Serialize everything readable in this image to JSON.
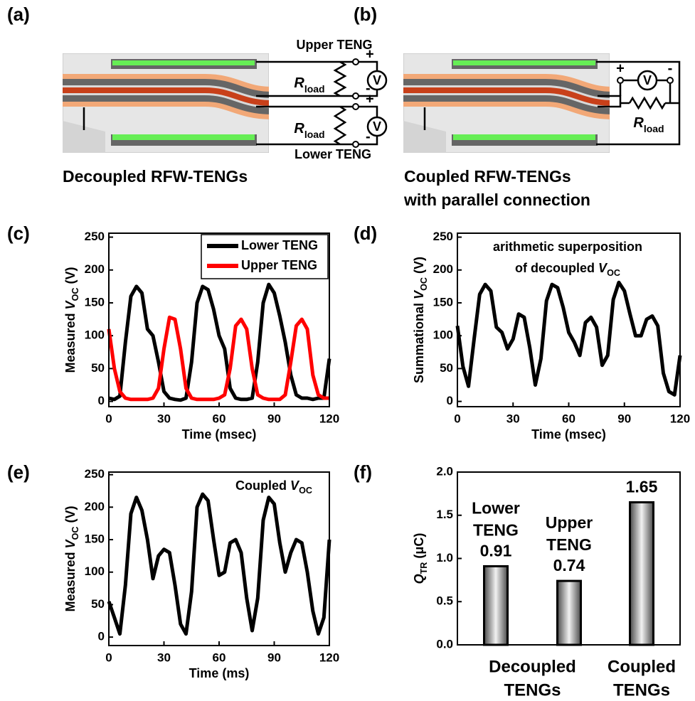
{
  "diagram_a": {
    "label": "(a)",
    "upper": "Upper TENG",
    "lower": "Lower TENG",
    "r_main": "R",
    "r_sub": "load",
    "meter": "V",
    "plus": "+",
    "minus": "-",
    "caption": [
      "Decoupled RFW-TENGs"
    ]
  },
  "diagram_b": {
    "label": "(b)",
    "r_main": "R",
    "r_sub": "load",
    "meter": "V",
    "plus": "+",
    "minus": "-",
    "caption": [
      "Coupled RFW-TENGs",
      "with parallel connection"
    ]
  },
  "chart_data": [
    {
      "type": "line",
      "panel": "(c)",
      "ylabel": [
        {
          "t": "Measured "
        },
        {
          "t": "V",
          "style": "italic"
        },
        {
          "t": "OC",
          "style": "sub"
        },
        {
          "t": " (V)"
        }
      ],
      "xlabel": "Time (msec)",
      "x": [
        0,
        3,
        6,
        9,
        12,
        15,
        18,
        21,
        24,
        27,
        30,
        33,
        36,
        39,
        42,
        45,
        48,
        51,
        54,
        57,
        60,
        63,
        66,
        69,
        72,
        75,
        78,
        81,
        84,
        87,
        90,
        93,
        96,
        99,
        102,
        105,
        108,
        111,
        114,
        117,
        120
      ],
      "series": [
        {
          "name": "Lower TENG",
          "color": "#000000",
          "values": [
            5,
            3,
            8,
            90,
            160,
            175,
            165,
            110,
            100,
            60,
            15,
            5,
            3,
            2,
            5,
            60,
            150,
            175,
            170,
            140,
            100,
            80,
            20,
            5,
            3,
            3,
            5,
            60,
            150,
            178,
            165,
            130,
            90,
            40,
            10,
            5,
            5,
            3,
            5,
            5,
            65
          ]
        },
        {
          "name": "Upper TENG",
          "color": "#ff0000",
          "values": [
            110,
            50,
            15,
            5,
            3,
            3,
            3,
            3,
            5,
            20,
            80,
            128,
            125,
            80,
            20,
            5,
            3,
            3,
            3,
            3,
            5,
            10,
            50,
            115,
            125,
            110,
            50,
            10,
            5,
            3,
            3,
            3,
            10,
            60,
            115,
            125,
            110,
            40,
            10,
            5,
            5
          ]
        }
      ],
      "xlim": [
        0,
        120
      ],
      "xticks": [
        0,
        30,
        60,
        90,
        120
      ],
      "ylim": [
        -8,
        256
      ],
      "yticks": [
        0,
        50,
        100,
        150,
        200,
        250
      ],
      "legend": "top-right"
    },
    {
      "type": "line",
      "panel": "(d)",
      "ylabel": [
        {
          "t": "Summational "
        },
        {
          "t": "V",
          "style": "italic"
        },
        {
          "t": "OC",
          "style": "sub"
        },
        {
          "t": " (V)"
        }
      ],
      "xlabel": "Time (msec)",
      "annotation": [
        [
          {
            "t": "arithmetic superposition"
          }
        ],
        [
          {
            "t": "of decoupled "
          },
          {
            "t": "V",
            "style": "italic"
          },
          {
            "t": "OC",
            "style": "sub"
          }
        ]
      ],
      "x": [
        0,
        3,
        6,
        9,
        12,
        15,
        18,
        21,
        24,
        27,
        30,
        33,
        36,
        39,
        42,
        45,
        48,
        51,
        54,
        57,
        60,
        63,
        66,
        69,
        72,
        75,
        78,
        81,
        84,
        87,
        90,
        93,
        96,
        99,
        102,
        105,
        108,
        111,
        114,
        117,
        120
      ],
      "series": [
        {
          "color": "#000000",
          "values": [
            115,
            53,
            23,
            95,
            163,
            178,
            168,
            113,
            105,
            80,
            95,
            133,
            128,
            82,
            25,
            65,
            153,
            178,
            173,
            143,
            105,
            90,
            70,
            120,
            128,
            113,
            55,
            70,
            155,
            181,
            168,
            133,
            100,
            100,
            125,
            130,
            115,
            43,
            15,
            10,
            70
          ]
        }
      ],
      "xlim": [
        0,
        120
      ],
      "xticks": [
        0,
        30,
        60,
        90,
        120
      ],
      "ylim": [
        -8,
        256
      ],
      "yticks": [
        0,
        50,
        100,
        150,
        200,
        250
      ]
    },
    {
      "type": "line",
      "panel": "(e)",
      "ylabel": [
        {
          "t": "Measured "
        },
        {
          "t": "V",
          "style": "italic"
        },
        {
          "t": "OC",
          "style": "sub"
        },
        {
          "t": " (V)"
        }
      ],
      "xlabel": "Time (ms)",
      "annotation": [
        [
          {
            "t": "Coupled "
          },
          {
            "t": "V",
            "style": "italic"
          },
          {
            "t": "OC",
            "style": "sub"
          }
        ]
      ],
      "x": [
        0,
        3,
        6,
        9,
        12,
        15,
        18,
        21,
        24,
        27,
        30,
        33,
        36,
        39,
        42,
        45,
        48,
        51,
        54,
        57,
        60,
        63,
        66,
        69,
        72,
        75,
        78,
        81,
        84,
        87,
        90,
        93,
        96,
        99,
        102,
        105,
        108,
        111,
        114,
        117,
        120
      ],
      "series": [
        {
          "color": "#000000",
          "values": [
            55,
            30,
            5,
            80,
            190,
            215,
            195,
            150,
            90,
            125,
            135,
            130,
            80,
            20,
            5,
            70,
            200,
            220,
            210,
            150,
            95,
            100,
            145,
            150,
            130,
            60,
            10,
            60,
            180,
            215,
            205,
            145,
            100,
            130,
            150,
            145,
            100,
            40,
            5,
            30,
            150
          ]
        }
      ],
      "xlim": [
        0,
        120
      ],
      "xticks": [
        0,
        30,
        60,
        90,
        120
      ],
      "ylim": [
        -13,
        254
      ],
      "yticks": [
        0,
        50,
        100,
        150,
        200,
        250
      ]
    },
    {
      "type": "bar",
      "panel": "(f)",
      "ylabel": [
        {
          "t": "Q",
          "style": "italic"
        },
        {
          "t": "TR",
          "style": "sub"
        },
        {
          "t": " (μC)"
        }
      ],
      "categories": [
        [
          "Lower",
          "TENG"
        ],
        [
          "Upper",
          "TENG"
        ],
        null
      ],
      "values": [
        0.91,
        0.74,
        1.65
      ],
      "groups": [
        [
          "Decoupled",
          "TENGs"
        ],
        [
          "Coupled",
          "TENGs"
        ]
      ],
      "ylim": [
        0,
        2
      ],
      "yticks": [
        {
          "value": 0,
          "label": "0.0"
        },
        {
          "value": 0.5,
          "label": "0.5"
        },
        {
          "value": 1,
          "label": "1.0"
        },
        {
          "value": 1.5,
          "label": "1.5"
        },
        {
          "value": 2,
          "label": "2.0"
        }
      ]
    }
  ]
}
